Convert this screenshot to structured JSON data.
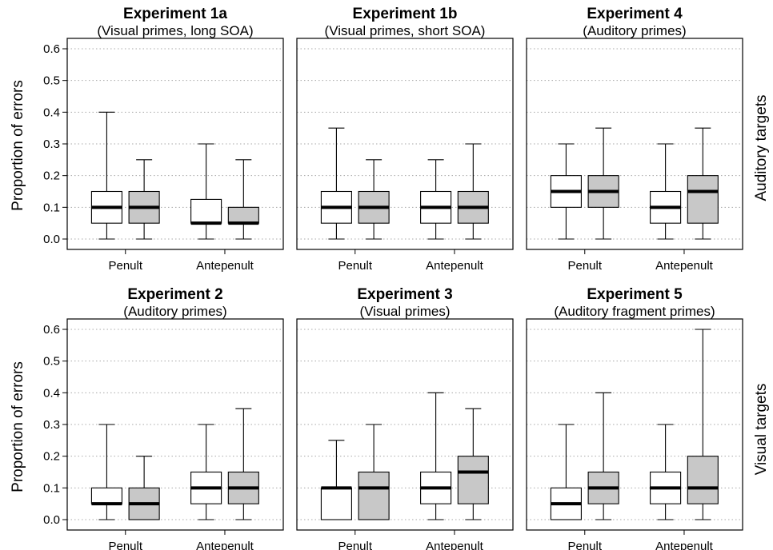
{
  "figure": {
    "ylabel": "Proportion of errors",
    "row_labels": [
      "Auditory targets",
      "Visual targets"
    ],
    "fill_colors": {
      "white_box": "#ffffff",
      "gray_box": "#c8c8c8"
    }
  },
  "chart_data": [
    {
      "type": "boxplot",
      "title": "Experiment 1a",
      "subtitle": "(Visual primes, long SOA)",
      "ylabel": "Proportion of errors",
      "ylim": [
        0,
        0.6
      ],
      "yticks": [
        "0.0",
        "0.1",
        "0.2",
        "0.3",
        "0.4",
        "0.5",
        "0.6"
      ],
      "categories": [
        "Penult",
        "Antepenult"
      ],
      "grid": "horizontal dotted",
      "boxes": [
        {
          "category": "Penult",
          "fill": "white",
          "min": 0.0,
          "q1": 0.05,
          "median": 0.1,
          "q3": 0.15,
          "max": 0.4
        },
        {
          "category": "Penult",
          "fill": "gray",
          "min": 0.0,
          "q1": 0.05,
          "median": 0.1,
          "q3": 0.15,
          "max": 0.25
        },
        {
          "category": "Antepenult",
          "fill": "white",
          "min": 0.0,
          "q1": 0.05,
          "median": 0.05,
          "q3": 0.125,
          "max": 0.3
        },
        {
          "category": "Antepenult",
          "fill": "gray",
          "min": 0.0,
          "q1": 0.05,
          "median": 0.05,
          "q3": 0.1,
          "max": 0.25
        }
      ]
    },
    {
      "type": "boxplot",
      "title": "Experiment 1b",
      "subtitle": "(Visual primes, short SOA)",
      "ylim": [
        0,
        0.6
      ],
      "categories": [
        "Penult",
        "Antepenult"
      ],
      "boxes": [
        {
          "category": "Penult",
          "fill": "white",
          "min": 0.0,
          "q1": 0.05,
          "median": 0.1,
          "q3": 0.15,
          "max": 0.35
        },
        {
          "category": "Penult",
          "fill": "gray",
          "min": 0.0,
          "q1": 0.05,
          "median": 0.1,
          "q3": 0.15,
          "max": 0.25
        },
        {
          "category": "Antepenult",
          "fill": "white",
          "min": 0.0,
          "q1": 0.05,
          "median": 0.1,
          "q3": 0.15,
          "max": 0.25
        },
        {
          "category": "Antepenult",
          "fill": "gray",
          "min": 0.0,
          "q1": 0.05,
          "median": 0.1,
          "q3": 0.15,
          "max": 0.3
        }
      ]
    },
    {
      "type": "boxplot",
      "title": "Experiment 4",
      "subtitle": "(Auditory primes)",
      "ylim": [
        0,
        0.6
      ],
      "categories": [
        "Penult",
        "Antepenult"
      ],
      "row_label": "Auditory targets",
      "boxes": [
        {
          "category": "Penult",
          "fill": "white",
          "min": 0.0,
          "q1": 0.1,
          "median": 0.15,
          "q3": 0.2,
          "max": 0.3
        },
        {
          "category": "Penult",
          "fill": "gray",
          "min": 0.0,
          "q1": 0.1,
          "median": 0.15,
          "q3": 0.2,
          "max": 0.35
        },
        {
          "category": "Antepenult",
          "fill": "white",
          "min": 0.0,
          "q1": 0.05,
          "median": 0.1,
          "q3": 0.15,
          "max": 0.3
        },
        {
          "category": "Antepenult",
          "fill": "gray",
          "min": 0.0,
          "q1": 0.05,
          "median": 0.15,
          "q3": 0.2,
          "max": 0.35
        }
      ]
    },
    {
      "type": "boxplot",
      "title": "Experiment 2",
      "subtitle": "(Auditory primes)",
      "ylabel": "Proportion of errors",
      "ylim": [
        0,
        0.6
      ],
      "yticks": [
        "0.0",
        "0.1",
        "0.2",
        "0.3",
        "0.4",
        "0.5",
        "0.6"
      ],
      "categories": [
        "Penult",
        "Antepenult"
      ],
      "boxes": [
        {
          "category": "Penult",
          "fill": "white",
          "min": 0.0,
          "q1": 0.05,
          "median": 0.05,
          "q3": 0.1,
          "max": 0.3
        },
        {
          "category": "Penult",
          "fill": "gray",
          "min": 0.0,
          "q1": 0.0,
          "median": 0.05,
          "q3": 0.1,
          "max": 0.2
        },
        {
          "category": "Antepenult",
          "fill": "white",
          "min": 0.0,
          "q1": 0.05,
          "median": 0.1,
          "q3": 0.15,
          "max": 0.3
        },
        {
          "category": "Antepenult",
          "fill": "gray",
          "min": 0.0,
          "q1": 0.05,
          "median": 0.1,
          "q3": 0.15,
          "max": 0.35
        }
      ]
    },
    {
      "type": "boxplot",
      "title": "Experiment 3",
      "subtitle": "(Visual primes)",
      "ylim": [
        0,
        0.6
      ],
      "categories": [
        "Penult",
        "Antepenult"
      ],
      "boxes": [
        {
          "category": "Penult",
          "fill": "white",
          "min": 0.0,
          "q1": 0.0,
          "median": 0.1,
          "q3": 0.1,
          "max": 0.25
        },
        {
          "category": "Penult",
          "fill": "gray",
          "min": 0.0,
          "q1": 0.0,
          "median": 0.1,
          "q3": 0.15,
          "max": 0.3
        },
        {
          "category": "Antepenult",
          "fill": "white",
          "min": 0.0,
          "q1": 0.05,
          "median": 0.1,
          "q3": 0.15,
          "max": 0.4
        },
        {
          "category": "Antepenult",
          "fill": "gray",
          "min": 0.0,
          "q1": 0.05,
          "median": 0.15,
          "q3": 0.2,
          "max": 0.35
        }
      ]
    },
    {
      "type": "boxplot",
      "title": "Experiment 5",
      "subtitle": "(Auditory fragment primes)",
      "ylim": [
        0,
        0.6
      ],
      "categories": [
        "Penult",
        "Antepenult"
      ],
      "row_label": "Visual targets",
      "boxes": [
        {
          "category": "Penult",
          "fill": "white",
          "min": 0.0,
          "q1": 0.0,
          "median": 0.05,
          "q3": 0.1,
          "max": 0.3
        },
        {
          "category": "Penult",
          "fill": "gray",
          "min": 0.0,
          "q1": 0.05,
          "median": 0.1,
          "q3": 0.15,
          "max": 0.4
        },
        {
          "category": "Antepenult",
          "fill": "white",
          "min": 0.0,
          "q1": 0.05,
          "median": 0.1,
          "q3": 0.15,
          "max": 0.3
        },
        {
          "category": "Antepenult",
          "fill": "gray",
          "min": 0.0,
          "q1": 0.05,
          "median": 0.1,
          "q3": 0.2,
          "max": 0.6
        }
      ]
    }
  ]
}
